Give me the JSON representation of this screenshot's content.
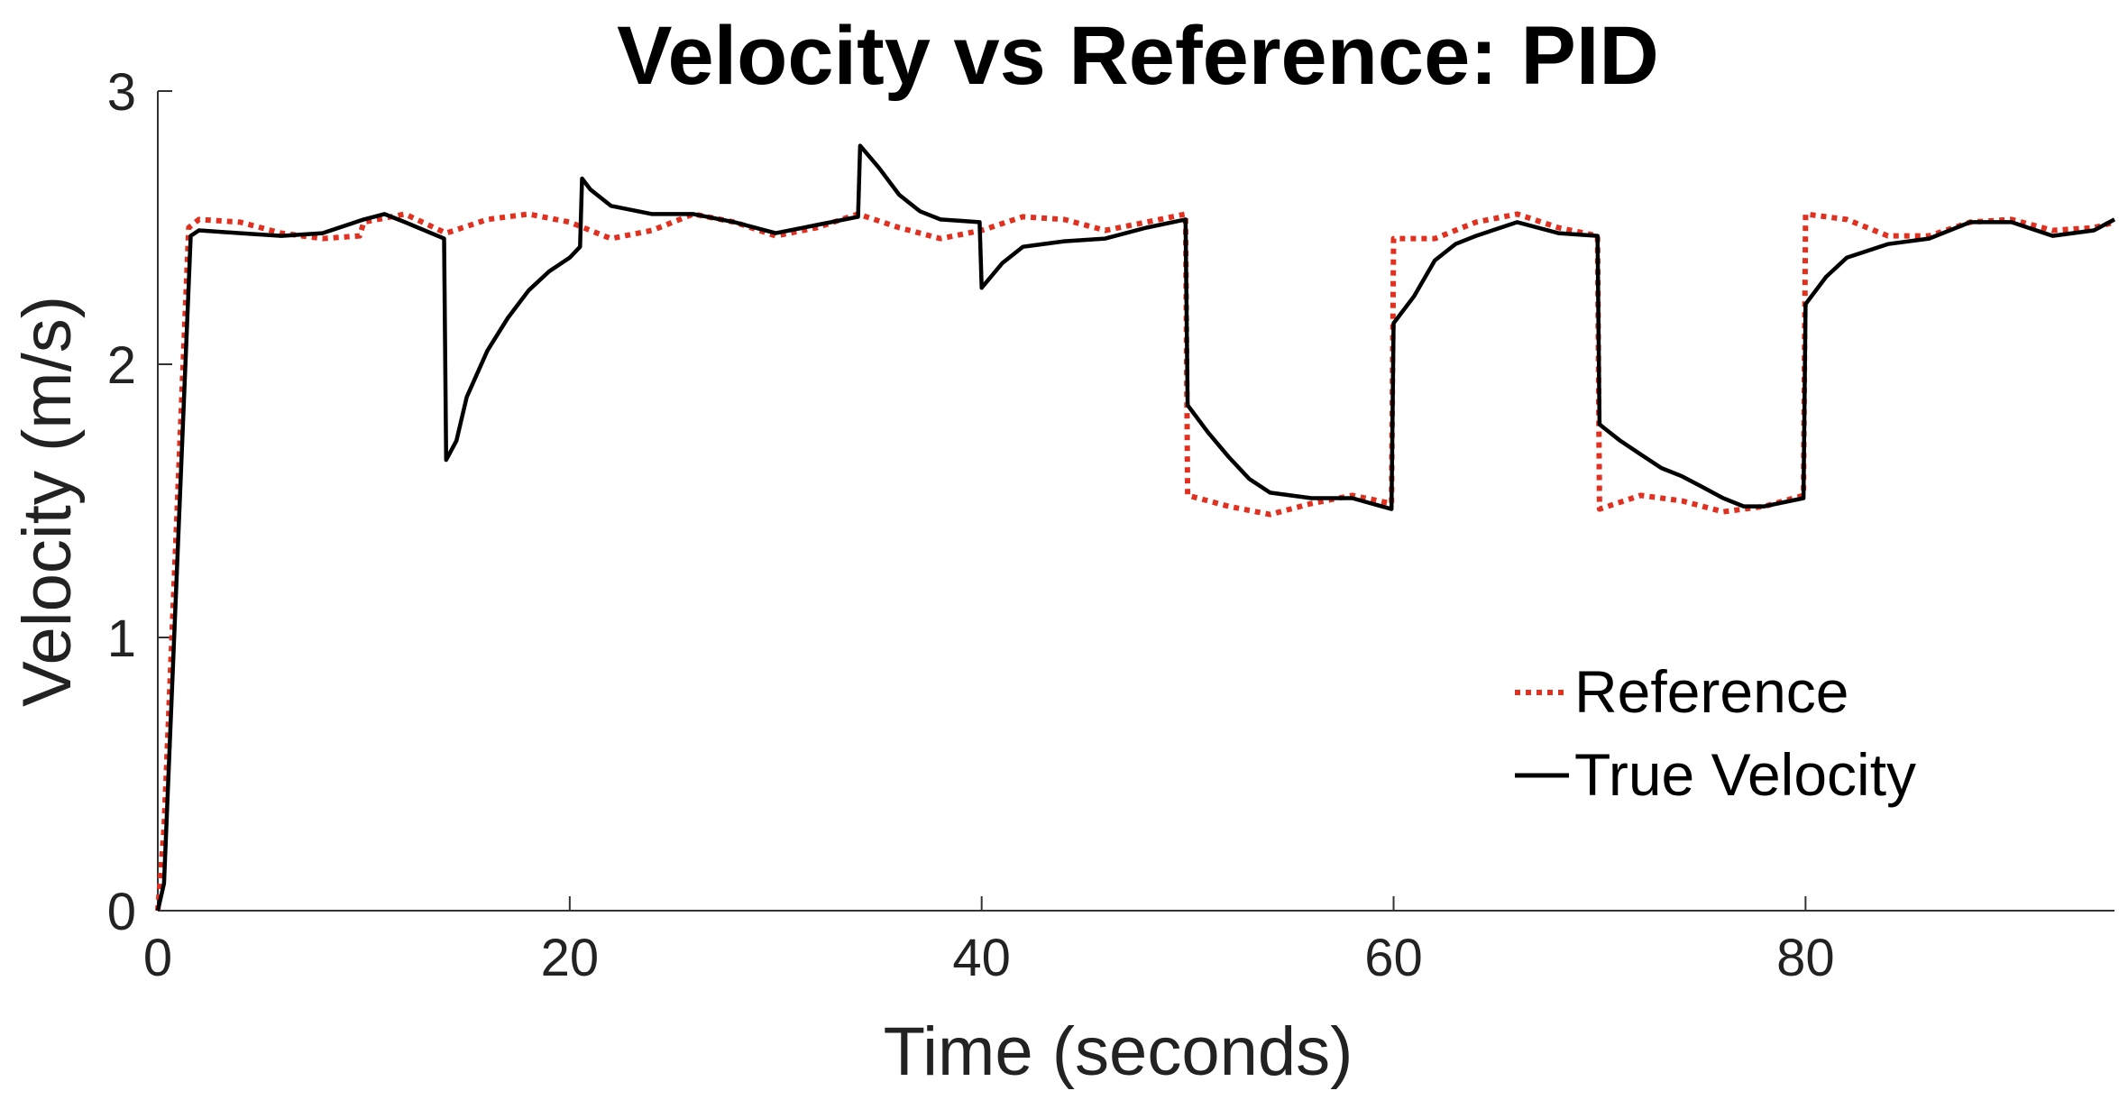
{
  "chart_data": {
    "type": "line",
    "title": "Velocity vs Reference: PID",
    "xlabel": "Time (seconds)",
    "ylabel": "Velocity (m/s)",
    "xlim": [
      0,
      95
    ],
    "ylim": [
      0,
      3
    ],
    "xticks": [
      0,
      20,
      40,
      60,
      80
    ],
    "yticks": [
      0,
      1,
      2,
      3
    ],
    "grid": false,
    "legend_position": "lower-right",
    "series": [
      {
        "name": "Reference",
        "color": "#e03020",
        "style": "dotted",
        "points": [
          [
            0,
            0
          ],
          [
            0.3,
            0.3
          ],
          [
            1.5,
            2.5
          ],
          [
            2,
            2.53
          ],
          [
            4,
            2.52
          ],
          [
            6,
            2.48
          ],
          [
            8,
            2.46
          ],
          [
            9.8,
            2.47
          ],
          [
            10,
            2.52
          ],
          [
            12,
            2.55
          ],
          [
            14,
            2.48
          ],
          [
            16,
            2.53
          ],
          [
            18,
            2.55
          ],
          [
            20,
            2.52
          ],
          [
            22,
            2.46
          ],
          [
            24,
            2.49
          ],
          [
            26,
            2.55
          ],
          [
            28,
            2.52
          ],
          [
            30,
            2.47
          ],
          [
            32,
            2.5
          ],
          [
            34,
            2.55
          ],
          [
            36,
            2.5
          ],
          [
            38,
            2.46
          ],
          [
            40,
            2.49
          ],
          [
            42,
            2.54
          ],
          [
            44,
            2.53
          ],
          [
            46,
            2.49
          ],
          [
            48,
            2.52
          ],
          [
            49.9,
            2.55
          ],
          [
            50,
            1.52
          ],
          [
            52,
            1.48
          ],
          [
            54,
            1.45
          ],
          [
            56,
            1.49
          ],
          [
            58,
            1.52
          ],
          [
            59.9,
            1.49
          ],
          [
            60,
            2.46
          ],
          [
            62,
            2.46
          ],
          [
            64,
            2.52
          ],
          [
            66,
            2.55
          ],
          [
            68,
            2.5
          ],
          [
            69.9,
            2.47
          ],
          [
            70,
            1.47
          ],
          [
            72,
            1.52
          ],
          [
            74,
            1.5
          ],
          [
            76,
            1.46
          ],
          [
            78,
            1.48
          ],
          [
            79.9,
            1.52
          ],
          [
            80,
            2.55
          ],
          [
            82,
            2.53
          ],
          [
            84,
            2.47
          ],
          [
            86,
            2.47
          ],
          [
            88,
            2.52
          ],
          [
            90,
            2.53
          ],
          [
            92,
            2.49
          ],
          [
            94,
            2.5
          ],
          [
            95,
            2.52
          ]
        ]
      },
      {
        "name": "True Velocity",
        "color": "#000000",
        "style": "solid",
        "points": [
          [
            0,
            0
          ],
          [
            0.3,
            0.1
          ],
          [
            1.6,
            2.47
          ],
          [
            2,
            2.49
          ],
          [
            4,
            2.48
          ],
          [
            6,
            2.47
          ],
          [
            8,
            2.48
          ],
          [
            10,
            2.53
          ],
          [
            11,
            2.55
          ],
          [
            12,
            2.52
          ],
          [
            13.9,
            2.46
          ],
          [
            14,
            1.65
          ],
          [
            14.5,
            1.72
          ],
          [
            15,
            1.88
          ],
          [
            16,
            2.05
          ],
          [
            17,
            2.17
          ],
          [
            18,
            2.27
          ],
          [
            19,
            2.34
          ],
          [
            20,
            2.39
          ],
          [
            20.5,
            2.43
          ],
          [
            20.6,
            2.68
          ],
          [
            21,
            2.64
          ],
          [
            22,
            2.58
          ],
          [
            24,
            2.55
          ],
          [
            26,
            2.55
          ],
          [
            28,
            2.52
          ],
          [
            30,
            2.48
          ],
          [
            32,
            2.51
          ],
          [
            34,
            2.54
          ],
          [
            34.1,
            2.8
          ],
          [
            35,
            2.72
          ],
          [
            36,
            2.62
          ],
          [
            37,
            2.56
          ],
          [
            38,
            2.53
          ],
          [
            39.9,
            2.52
          ],
          [
            40,
            2.28
          ],
          [
            41,
            2.37
          ],
          [
            42,
            2.43
          ],
          [
            44,
            2.45
          ],
          [
            46,
            2.46
          ],
          [
            48,
            2.5
          ],
          [
            49.9,
            2.53
          ],
          [
            50,
            1.85
          ],
          [
            51,
            1.75
          ],
          [
            52,
            1.66
          ],
          [
            53,
            1.58
          ],
          [
            54,
            1.53
          ],
          [
            56,
            1.51
          ],
          [
            58,
            1.51
          ],
          [
            59.9,
            1.47
          ],
          [
            60,
            2.15
          ],
          [
            61,
            2.25
          ],
          [
            62,
            2.38
          ],
          [
            63,
            2.44
          ],
          [
            64,
            2.47
          ],
          [
            66,
            2.52
          ],
          [
            68,
            2.48
          ],
          [
            69.9,
            2.47
          ],
          [
            70,
            1.78
          ],
          [
            71,
            1.72
          ],
          [
            72,
            1.67
          ],
          [
            73,
            1.62
          ],
          [
            74,
            1.59
          ],
          [
            75,
            1.55
          ],
          [
            76,
            1.51
          ],
          [
            77,
            1.48
          ],
          [
            78,
            1.48
          ],
          [
            79.9,
            1.51
          ],
          [
            80,
            2.22
          ],
          [
            81,
            2.32
          ],
          [
            82,
            2.39
          ],
          [
            84,
            2.44
          ],
          [
            86,
            2.46
          ],
          [
            88,
            2.52
          ],
          [
            90,
            2.52
          ],
          [
            92,
            2.47
          ],
          [
            94,
            2.49
          ],
          [
            95,
            2.53
          ]
        ]
      }
    ]
  }
}
